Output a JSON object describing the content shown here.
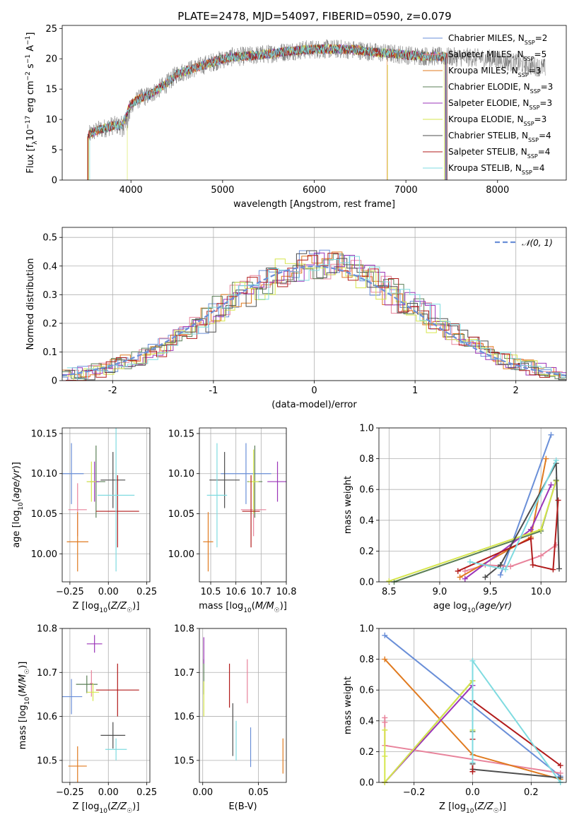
{
  "title": "PLATE=2478, MJD=54097, FIBERID=0590, z=0.079",
  "colors": {
    "chabrier_miles": "#6a8fd8",
    "salpeter_miles": "#e8839b",
    "kroupa_miles": "#e07a1f",
    "chabrier_elodie": "#5b7f57",
    "salpeter_elodie": "#9b34b8",
    "kroupa_elodie": "#d6e64c",
    "chabrier_stelib": "#4d4d4d",
    "salpeter_stelib": "#b11b1b",
    "kroupa_stelib": "#7fdbe0",
    "normal": "#6a8fd8",
    "data": "#777777"
  },
  "chart_data": [
    {
      "id": "spectrum",
      "type": "line",
      "xlabel": "wavelength [Angstrom, rest frame]",
      "ylabel": "Flux [fλ10⁻¹⁷ erg cm⁻² s⁻¹ A⁻¹]",
      "xlim": [
        3250,
        8750
      ],
      "ylim": [
        0,
        25.5
      ],
      "xticks": [
        4000,
        5000,
        6000,
        7000,
        8000
      ],
      "yticks": [
        0,
        5,
        10,
        15,
        20,
        25
      ],
      "grid": false,
      "legend_position": "top-right",
      "legend": [
        "Chabrier MILES, N_SSP=2",
        "Salpeter MILES, N_SSP=5",
        "Kroupa MILES, N_SSP=3",
        "Chabrier ELODIE, N_SSP=3",
        "Salpeter ELODIE, N_SSP=3",
        "Kroupa ELODIE, N_SSP=3",
        "Chabrier STELIB, N_SSP=4",
        "Salpeter STELIB, N_SSP=4",
        "Kroupa STELIB, N_SSP=4"
      ],
      "legend_display": [
        [
          "Chabrier MILES, N",
          "SSP",
          "=2"
        ],
        [
          "Salpeter MILES, N",
          "SSP",
          "=5"
        ],
        [
          "Kroupa MILES, N",
          "SSP",
          "=3"
        ],
        [
          "Chabrier ELODIE, N",
          "SSP",
          "=3"
        ],
        [
          "Salpeter ELODIE, N",
          "SSP",
          "=3"
        ],
        [
          "Kroupa ELODIE, N",
          "SSP",
          "=3"
        ],
        [
          "Chabrier STELIB, N",
          "SSP",
          "=4"
        ],
        [
          "Salpeter STELIB, N",
          "SSP",
          "=4"
        ],
        [
          "Kroupa STELIB, N",
          "SSP",
          "=4"
        ]
      ],
      "continuum": {
        "x": [
          3500,
          3600,
          3700,
          3800,
          3900,
          4000,
          4100,
          4200,
          4300,
          4400,
          4500,
          4700,
          4900,
          5100,
          5300,
          5500,
          5700,
          5900,
          6100,
          6300,
          6500,
          6700,
          6900,
          7100,
          7300,
          7500,
          7700,
          7900,
          8100,
          8300,
          8500
        ],
        "y": [
          7,
          8,
          8.5,
          9,
          9,
          12.5,
          13.5,
          14,
          15,
          16,
          17.5,
          18.5,
          19.5,
          20.3,
          20.5,
          20.8,
          21.2,
          21.5,
          21.6,
          21.6,
          21.4,
          21,
          20.8,
          20.5,
          20.4,
          20.3,
          20.2,
          20,
          19.6,
          19,
          18.5
        ]
      },
      "model_ranges": [
        {
          "x_start": 3530,
          "x_end": 7450
        },
        {
          "x_start": 3530,
          "x_end": 7440
        },
        {
          "x_start": 3525,
          "x_end": 7445
        },
        {
          "x_start": 3530,
          "x_end": 7430
        },
        {
          "x_start": 3530,
          "x_end": 7435
        },
        {
          "x_start": 3540,
          "x_end": 7420
        },
        {
          "x_start": 3530,
          "x_end": 7440
        },
        {
          "x_start": 3530,
          "x_end": 7450
        },
        {
          "x_start": 3550,
          "x_end": 7445
        }
      ]
    },
    {
      "id": "residuals",
      "type": "histogram",
      "xlabel": "(data-model)/error",
      "ylabel": "Normed distribution",
      "xlim": [
        -2.5,
        2.5
      ],
      "ylim": [
        0,
        0.535
      ],
      "xticks": [
        -2,
        -1,
        0,
        1,
        2
      ],
      "yticks": [
        0.0,
        0.1,
        0.2,
        0.3,
        0.4,
        0.5
      ],
      "grid": true,
      "legend_position": "top-right",
      "normal_label": "𝒩(0, 1)",
      "bin_width": 0.1,
      "bin_start": -2.5,
      "approx_density": [
        0.018,
        0.022,
        0.03,
        0.036,
        0.045,
        0.054,
        0.066,
        0.079,
        0.094,
        0.111,
        0.13,
        0.15,
        0.171,
        0.194,
        0.218,
        0.242,
        0.266,
        0.29,
        0.313,
        0.334,
        0.354,
        0.371,
        0.385,
        0.396,
        0.402,
        0.405,
        0.402,
        0.396,
        0.385,
        0.371,
        0.354,
        0.334,
        0.313,
        0.29,
        0.266,
        0.242,
        0.218,
        0.194,
        0.171,
        0.15,
        0.13,
        0.111,
        0.094,
        0.079,
        0.066,
        0.054,
        0.045,
        0.036,
        0.03,
        0.022
      ]
    },
    {
      "id": "age_vs_z",
      "type": "scatter",
      "xlabel": "Z [log10(Z/Z☉)]",
      "ylabel": "age [log10(age/yr)]",
      "xlim": [
        -0.3,
        0.27
      ],
      "ylim": [
        9.965,
        10.157
      ],
      "xticks": [
        -0.25,
        0,
        0.25
      ],
      "xtick_labels": [
        "−0.25",
        "0.00",
        "0.25"
      ],
      "yticks": [
        10.0,
        10.05,
        10.1,
        10.15
      ],
      "ytick_labels": [
        "10.00",
        "10.05",
        "10.10",
        "10.15"
      ],
      "grid": true,
      "points": [
        {
          "model": "chabrier_miles",
          "x": -0.24,
          "xerr": 0.08,
          "y": 10.1,
          "yerr": 0.038
        },
        {
          "model": "salpeter_miles",
          "x": -0.2,
          "xerr": 0.06,
          "y": 10.055,
          "yerr": 0.033
        },
        {
          "model": "kroupa_miles",
          "x": -0.2,
          "xerr": 0.07,
          "y": 10.015,
          "yerr": 0.037
        },
        {
          "model": "chabrier_elodie",
          "x": -0.08,
          "xerr": 0.06,
          "y": 10.09,
          "yerr": 0.045
        },
        {
          "model": "salpeter_elodie",
          "x": -0.09,
          "xerr": 0.03,
          "y": 10.09,
          "yerr": 0.025
        },
        {
          "model": "kroupa_elodie",
          "x": -0.11,
          "xerr": 0.03,
          "y": 10.09,
          "yerr": 0.025
        },
        {
          "model": "chabrier_stelib",
          "x": 0.03,
          "xerr": 0.08,
          "y": 10.092,
          "yerr": 0.035
        },
        {
          "model": "salpeter_stelib",
          "x": 0.06,
          "xerr": 0.14,
          "y": 10.053,
          "yerr": 0.045
        },
        {
          "model": "kroupa_stelib",
          "x": 0.05,
          "xerr": 0.12,
          "y": 10.073,
          "yerr": 0.095
        }
      ]
    },
    {
      "id": "age_vs_mass",
      "type": "scatter",
      "xlabel": "mass [log10(M/M☉)]",
      "ylabel": "",
      "xlim": [
        10.455,
        10.8
      ],
      "ylim": [
        9.965,
        10.157
      ],
      "xticks": [
        10.5,
        10.6,
        10.7,
        10.8
      ],
      "xtick_labels": [
        "10.5",
        "10.6",
        "10.7",
        "10.8"
      ],
      "yticks": [
        10.0,
        10.05,
        10.1,
        10.15
      ],
      "ytick_labels": [
        "10.00",
        "10.05",
        "10.10",
        "10.15"
      ],
      "grid": true,
      "points": [
        {
          "model": "chabrier_miles",
          "x": 10.64,
          "xerr": 0.1,
          "y": 10.1,
          "yerr": 0.038
        },
        {
          "model": "salpeter_miles",
          "x": 10.67,
          "xerr": 0.05,
          "y": 10.055,
          "yerr": 0.033
        },
        {
          "model": "kroupa_miles",
          "x": 10.49,
          "xerr": 0.02,
          "y": 10.015,
          "yerr": 0.037
        },
        {
          "model": "chabrier_elodie",
          "x": 10.675,
          "xerr": 0.03,
          "y": 10.09,
          "yerr": 0.045
        },
        {
          "model": "salpeter_elodie",
          "x": 10.765,
          "xerr": 0.04,
          "y": 10.09,
          "yerr": 0.025
        },
        {
          "model": "kroupa_elodie",
          "x": 10.67,
          "xerr": 0.02,
          "y": 10.09,
          "yerr": 0.04
        },
        {
          "model": "chabrier_stelib",
          "x": 10.555,
          "xerr": 0.06,
          "y": 10.092,
          "yerr": 0.035
        },
        {
          "model": "salpeter_stelib",
          "x": 10.66,
          "xerr": 0.035,
          "y": 10.053,
          "yerr": 0.045
        },
        {
          "model": "kroupa_stelib",
          "x": 10.525,
          "xerr": 0.04,
          "y": 10.073,
          "yerr": 0.065
        }
      ]
    },
    {
      "id": "mass_weight_vs_age",
      "type": "line",
      "xlabel": "age [log10(age/yr)]",
      "ylabel": "mass weight",
      "xlim": [
        8.4,
        10.25
      ],
      "ylim": [
        0,
        1
      ],
      "xticks": [
        8.5,
        9.0,
        9.5,
        10.0
      ],
      "xtick_labels": [
        "8.5",
        "9.0",
        "9.5",
        "10.0"
      ],
      "yticks": [
        0,
        0.2,
        0.4,
        0.6,
        0.8,
        1.0
      ],
      "ytick_labels": [
        "0.0",
        "0.2",
        "0.4",
        "0.6",
        "0.8",
        "1.0"
      ],
      "grid": true,
      "series": [
        {
          "model": "chabrier_miles",
          "x": [
            9.6,
            10.1
          ],
          "y": [
            0.045,
            0.955
          ]
        },
        {
          "model": "salpeter_miles",
          "x": [
            9.25,
            9.45,
            9.7,
            10.0,
            10.15
          ],
          "y": [
            0.07,
            0.11,
            0.1,
            0.17,
            0.24
          ]
        },
        {
          "model": "kroupa_miles",
          "x": [
            9.2,
            9.9,
            10.05
          ],
          "y": [
            0.03,
            0.29,
            0.8
          ]
        },
        {
          "model": "chabrier_elodie",
          "x": [
            8.55,
            10.0,
            10.15
          ],
          "y": [
            0.0,
            0.33,
            0.66
          ]
        },
        {
          "model": "salpeter_elodie",
          "x": [
            9.25,
            9.9,
            10.1
          ],
          "y": [
            0.02,
            0.34,
            0.63
          ]
        },
        {
          "model": "kroupa_elodie",
          "x": [
            8.5,
            10.0,
            10.15
          ],
          "y": [
            0.005,
            0.34,
            0.655
          ]
        },
        {
          "model": "chabrier_stelib",
          "x": [
            9.45,
            9.6,
            10.15,
            10.18
          ],
          "y": [
            0.03,
            0.11,
            0.77,
            0.085
          ]
        },
        {
          "model": "salpeter_stelib",
          "x": [
            9.18,
            9.9,
            9.92,
            10.12,
            10.17
          ],
          "y": [
            0.07,
            0.28,
            0.11,
            0.08,
            0.53
          ]
        },
        {
          "model": "kroupa_stelib",
          "x": [
            9.3,
            9.65,
            10.15
          ],
          "y": [
            0.13,
            0.08,
            0.79
          ]
        }
      ]
    },
    {
      "id": "mass_vs_z",
      "type": "scatter",
      "xlabel": "Z [log10(Z/Z☉)]",
      "ylabel": "mass [log10(M/M☉)]",
      "xlim": [
        -0.3,
        0.27
      ],
      "ylim": [
        10.45,
        10.8
      ],
      "xticks": [
        -0.25,
        0,
        0.25
      ],
      "xtick_labels": [
        "−0.25",
        "0.00",
        "0.25"
      ],
      "yticks": [
        10.5,
        10.6,
        10.7,
        10.8
      ],
      "ytick_labels": [
        "10.5",
        "10.6",
        "10.7",
        "10.8"
      ],
      "grid": true,
      "points": [
        {
          "model": "chabrier_miles",
          "x": -0.24,
          "xerr": 0.07,
          "y": 10.645,
          "yerr": 0.04
        },
        {
          "model": "salpeter_miles",
          "x": -0.11,
          "xerr": 0.01,
          "y": 10.675,
          "yerr": 0.03
        },
        {
          "model": "kroupa_miles",
          "x": -0.2,
          "xerr": 0.06,
          "y": 10.487,
          "yerr": 0.045
        },
        {
          "model": "chabrier_elodie",
          "x": -0.14,
          "xerr": 0.07,
          "y": 10.673,
          "yerr": 0.02
        },
        {
          "model": "salpeter_elodie",
          "x": -0.09,
          "xerr": 0.05,
          "y": 10.765,
          "yerr": 0.02
        },
        {
          "model": "kroupa_elodie",
          "x": -0.1,
          "xerr": 0.04,
          "y": 10.655,
          "yerr": 0.02
        },
        {
          "model": "chabrier_stelib",
          "x": 0.03,
          "xerr": 0.08,
          "y": 10.557,
          "yerr": 0.03
        },
        {
          "model": "salpeter_stelib",
          "x": 0.06,
          "xerr": 0.14,
          "y": 10.66,
          "yerr": 0.06
        },
        {
          "model": "kroupa_stelib",
          "x": 0.05,
          "xerr": 0.07,
          "y": 10.525,
          "yerr": 0.025
        }
      ]
    },
    {
      "id": "mass_vs_ebv",
      "type": "scatter",
      "xlabel": "E(B-V)",
      "ylabel": "",
      "xlim": [
        -0.003,
        0.075
      ],
      "ylim": [
        10.45,
        10.8
      ],
      "xticks": [
        0.0,
        0.05
      ],
      "xtick_labels": [
        "0.00",
        "0.05"
      ],
      "yticks": [
        10.5,
        10.6,
        10.7,
        10.8
      ],
      "ytick_labels": [
        "10.5",
        "10.6",
        "10.7",
        "10.8"
      ],
      "grid": true,
      "points": [
        {
          "model": "chabrier_miles",
          "x": 0.043,
          "xerr": 0,
          "y": 10.53,
          "yerr": 0.045
        },
        {
          "model": "salpeter_miles",
          "x": 0.04,
          "xerr": 0,
          "y": 10.68,
          "yerr": 0.05
        },
        {
          "model": "kroupa_miles",
          "x": 0.072,
          "xerr": 0,
          "y": 10.51,
          "yerr": 0.04
        },
        {
          "model": "chabrier_elodie",
          "x": 0.001,
          "xerr": 0,
          "y": 10.69,
          "yerr": 0.04
        },
        {
          "model": "salpeter_elodie",
          "x": 0.001,
          "xerr": 0,
          "y": 10.75,
          "yerr": 0.03
        },
        {
          "model": "kroupa_elodie",
          "x": 0.001,
          "xerr": 0,
          "y": 10.64,
          "yerr": 0.04
        },
        {
          "model": "chabrier_stelib",
          "x": 0.027,
          "xerr": 0,
          "y": 10.57,
          "yerr": 0.06
        },
        {
          "model": "salpeter_stelib",
          "x": 0.024,
          "xerr": 0,
          "y": 10.67,
          "yerr": 0.05
        },
        {
          "model": "kroupa_stelib",
          "x": 0.03,
          "xerr": 0,
          "y": 10.545,
          "yerr": 0.045
        }
      ]
    },
    {
      "id": "mass_weight_vs_z",
      "type": "line",
      "xlabel": "Z [log10(Z/Z☉)]",
      "ylabel": "mass weight",
      "xlim": [
        -0.32,
        0.32
      ],
      "ylim": [
        0,
        1
      ],
      "xticks": [
        -0.2,
        0.0,
        0.2
      ],
      "xtick_labels": [
        "−0.2",
        "0.0",
        "0.2"
      ],
      "yticks": [
        0,
        0.2,
        0.4,
        0.6,
        0.8,
        1.0
      ],
      "ytick_labels": [
        "0.0",
        "0.2",
        "0.4",
        "0.6",
        "0.8",
        "1.0"
      ],
      "grid": true,
      "series": [
        {
          "model": "chabrier_miles",
          "x": [
            -0.3,
            0.3
          ],
          "y": [
            0.955,
            0.04
          ]
        },
        {
          "model": "salpeter_miles",
          "x": [
            -0.3,
            -0.3,
            -0.3,
            0.3
          ],
          "y": [
            0.42,
            0.39,
            0.24,
            0.06
          ]
        },
        {
          "model": "kroupa_miles",
          "x": [
            -0.3,
            0.0,
            0.3
          ],
          "y": [
            0.8,
            0.18,
            0.02
          ]
        },
        {
          "model": "chabrier_elodie",
          "x": [
            -0.3,
            0.0,
            0.0
          ],
          "y": [
            0.0,
            0.66,
            0.33
          ]
        },
        {
          "model": "salpeter_elodie",
          "x": [
            -0.3,
            0.0
          ],
          "y": [
            0.0,
            0.63
          ]
        },
        {
          "model": "kroupa_elodie",
          "x": [
            -0.3,
            -0.3,
            -0.3,
            0.0,
            0.0
          ],
          "y": [
            0.34,
            0.17,
            0.0,
            0.66,
            0.34
          ]
        },
        {
          "model": "chabrier_stelib",
          "x": [
            0.0,
            0.0,
            0.3
          ],
          "y": [
            0.12,
            0.085,
            0.03
          ]
        },
        {
          "model": "salpeter_stelib",
          "x": [
            0.0,
            0.0,
            0.0,
            0.3
          ],
          "y": [
            0.28,
            0.07,
            0.53,
            0.11
          ]
        },
        {
          "model": "kroupa_stelib",
          "x": [
            0.0,
            0.0,
            0.3
          ],
          "y": [
            0.13,
            0.79,
            0.0
          ]
        }
      ]
    }
  ]
}
